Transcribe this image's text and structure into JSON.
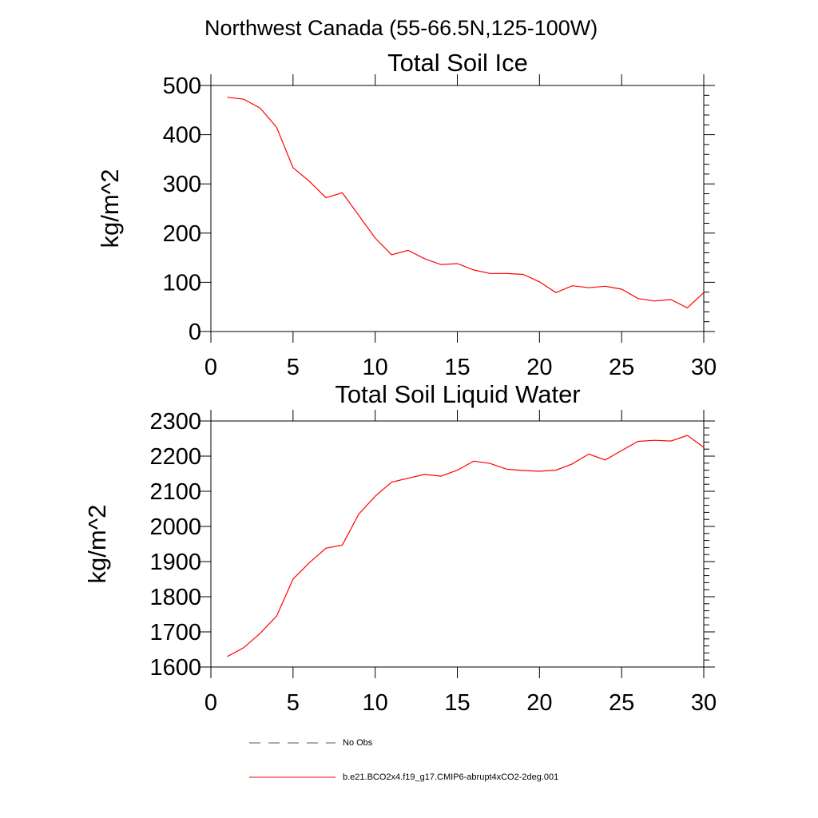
{
  "suptitle": "Northwest Canada (55-66.5N,125-100W)",
  "legend": {
    "items": [
      {
        "label": "No Obs",
        "color": "#555577",
        "dash": "14,10"
      },
      {
        "label": "b.e21.BCO2x4.f19_g17.CMIP6-abrupt4xCO2-2deg.001",
        "color": "#ff0000",
        "dash": ""
      }
    ]
  },
  "chart_data": [
    {
      "type": "line",
      "title": "Total Soil Ice",
      "xlabel": "",
      "ylabel": "kg/m^2",
      "xlim": [
        0,
        30
      ],
      "ylim": [
        0,
        500
      ],
      "xticks": [
        0,
        5,
        10,
        15,
        20,
        25,
        30
      ],
      "yticks": [
        0,
        100,
        200,
        300,
        400,
        500
      ],
      "grid": false,
      "series": [
        {
          "color": "#ff0000",
          "x": [
            1,
            2,
            3,
            4,
            5,
            6,
            7,
            8,
            9,
            10,
            11,
            12,
            13,
            14,
            15,
            16,
            17,
            18,
            19,
            20,
            21,
            22,
            23,
            24,
            25,
            26,
            27,
            28,
            29,
            30
          ],
          "values": [
            476,
            472,
            454,
            415,
            333,
            305,
            272,
            282,
            236,
            190,
            156,
            165,
            148,
            136,
            138,
            125,
            118,
            118,
            116,
            101,
            79,
            93,
            89,
            92,
            86,
            67,
            62,
            65,
            48,
            79
          ]
        }
      ]
    },
    {
      "type": "line",
      "title": "Total Soil Liquid Water",
      "xlabel": "",
      "ylabel": "kg/m^2",
      "xlim": [
        0,
        30
      ],
      "ylim": [
        1600,
        2300
      ],
      "xticks": [
        0,
        5,
        10,
        15,
        20,
        25,
        30
      ],
      "yticks": [
        1600,
        1700,
        1800,
        1900,
        2000,
        2100,
        2200,
        2300
      ],
      "grid": false,
      "series": [
        {
          "color": "#ff0000",
          "x": [
            1,
            2,
            3,
            4,
            5,
            6,
            7,
            8,
            9,
            10,
            11,
            12,
            13,
            14,
            15,
            16,
            17,
            18,
            19,
            20,
            21,
            22,
            23,
            24,
            25,
            26,
            27,
            28,
            29,
            30
          ],
          "values": [
            1630,
            1655,
            1696,
            1745,
            1850,
            1897,
            1938,
            1947,
            2035,
            2086,
            2126,
            2137,
            2148,
            2143,
            2160,
            2186,
            2179,
            2163,
            2159,
            2157,
            2160,
            2178,
            2206,
            2189,
            2216,
            2242,
            2245,
            2243,
            2259,
            2225
          ]
        }
      ]
    }
  ]
}
